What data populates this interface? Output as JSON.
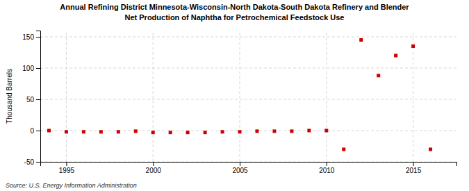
{
  "chart_data": {
    "type": "scatter",
    "title": "Annual Refining District Minnesota-Wisconsin-North Dakota-South Dakota Refinery and Blender",
    "subtitle": "Net Production of Naphtha for Petrochemical Feedstock Use",
    "ylabel": "Thousand Barrels",
    "source": "Source: U.S. Energy Information Administration",
    "x": [
      1994,
      1995,
      1996,
      1997,
      1998,
      1999,
      2000,
      2001,
      2002,
      2003,
      2004,
      2005,
      2006,
      2007,
      2008,
      2009,
      2010,
      2011,
      2012,
      2013,
      2014,
      2015,
      2016
    ],
    "values": [
      0,
      -2,
      -2,
      -2,
      -2,
      -1,
      -3,
      -3,
      -3,
      -3,
      -2,
      -2,
      -1,
      -1,
      -1,
      0,
      0,
      -30,
      145,
      88,
      120,
      135,
      -30
    ],
    "color": "#cc0000",
    "marker": "square",
    "xlim": [
      1993.5,
      2017.5
    ],
    "ylim": [
      -50,
      160
    ],
    "xticks": [
      1995,
      2000,
      2005,
      2010,
      2015
    ],
    "yticks": [
      -50,
      0,
      50,
      100,
      150
    ],
    "grid": true
  }
}
